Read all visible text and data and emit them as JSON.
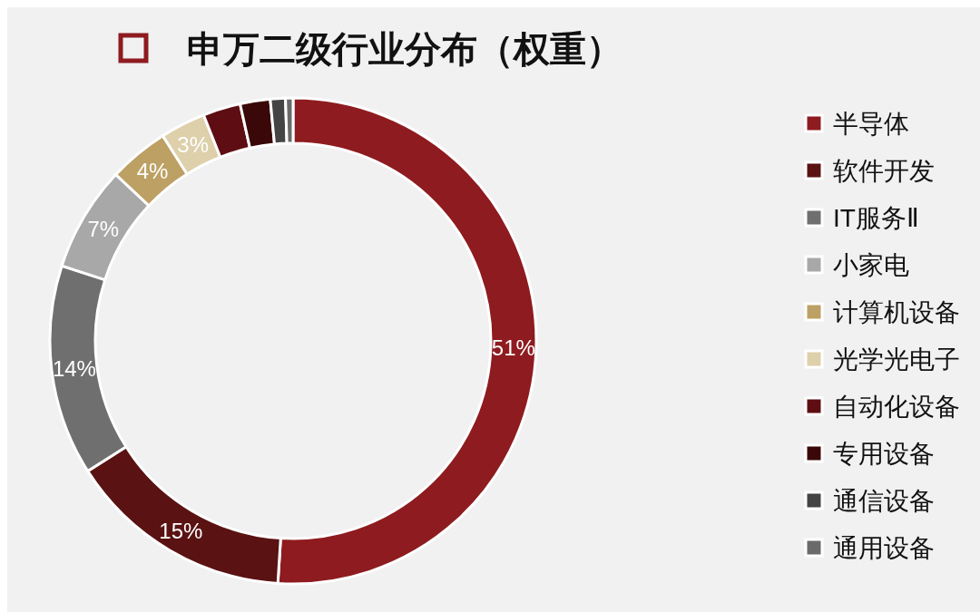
{
  "chart_data": {
    "type": "donut",
    "title": "申万二级行业分布（权重）",
    "categories": [
      "半导体",
      "软件开发",
      "IT服务Ⅱ",
      "小家电",
      "计算机设备",
      "光学光电子",
      "自动化设备",
      "专用设备",
      "通信设备",
      "通用设备"
    ],
    "values": [
      51,
      15,
      14,
      7,
      4,
      3,
      2.5,
      2,
      1,
      0.5
    ],
    "value_labels": [
      "51%",
      "15%",
      "14%",
      "7%",
      "4%",
      "3%",
      null,
      null,
      null,
      null
    ],
    "colors": [
      "#8e1b1f",
      "#5a1212",
      "#6f6f6f",
      "#a8a8a8",
      "#bda063",
      "#ddd0aa",
      "#5e0e12",
      "#3a0808",
      "#444444",
      "#6a6a6a"
    ],
    "legend": "right"
  }
}
